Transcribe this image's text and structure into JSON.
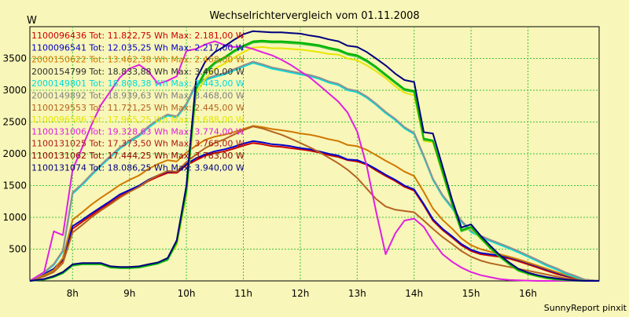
{
  "chart_data": {
    "type": "line",
    "title": "Wechselrichtervergleich vom 01.11.2008",
    "ylabel": "W",
    "footer": "SunnyReport pinxit",
    "ylim": [
      0,
      4000
    ],
    "xlim": [
      7.25,
      17.25
    ],
    "yticks": [
      500,
      1000,
      1500,
      2000,
      2500,
      3000,
      3500
    ],
    "xticks": [
      {
        "x": 8,
        "label": "8h"
      },
      {
        "x": 9,
        "label": "9h"
      },
      {
        "x": 10,
        "label": "10h"
      },
      {
        "x": 11,
        "label": "11h"
      },
      {
        "x": 12,
        "label": "12h"
      },
      {
        "x": 13,
        "label": "13h"
      },
      {
        "x": 14,
        "label": "14h"
      },
      {
        "x": 15,
        "label": "15h"
      },
      {
        "x": 16,
        "label": "16h"
      }
    ],
    "grid": true,
    "background": "#f8f6b8",
    "grid_color": "#3cc43c",
    "x": [
      7.25,
      7.5,
      7.67,
      7.83,
      8.0,
      8.17,
      8.33,
      8.5,
      8.67,
      8.83,
      9.0,
      9.17,
      9.33,
      9.5,
      9.67,
      9.83,
      10.0,
      10.17,
      10.33,
      10.5,
      10.67,
      10.83,
      11.0,
      11.17,
      11.33,
      11.5,
      11.67,
      11.83,
      12.0,
      12.17,
      12.33,
      12.5,
      12.67,
      12.83,
      13.0,
      13.17,
      13.33,
      13.5,
      13.67,
      13.83,
      14.0,
      14.17,
      14.33,
      14.5,
      14.67,
      14.83,
      15.0,
      15.17,
      15.33,
      15.5,
      15.67,
      15.83,
      16.0,
      16.17,
      16.33,
      16.5,
      16.67,
      16.83,
      17.0,
      17.25
    ],
    "series": [
      {
        "name": "1100096436 Tot: 11.822,75 Wh Max: 2.181,00 W",
        "color": "#cc0000",
        "values": [
          0,
          100,
          180,
          320,
          820,
          930,
          1030,
          1140,
          1230,
          1330,
          1410,
          1480,
          1570,
          1640,
          1700,
          1700,
          1820,
          1900,
          1970,
          2010,
          2040,
          2080,
          2130,
          2170,
          2150,
          2120,
          2110,
          2090,
          2070,
          2050,
          2020,
          1980,
          1950,
          1900,
          1880,
          1830,
          1740,
          1650,
          1570,
          1480,
          1420,
          1190,
          950,
          800,
          680,
          560,
          470,
          420,
          400,
          380,
          350,
          310,
          260,
          210,
          160,
          110,
          70,
          40,
          10,
          0
        ]
      },
      {
        "name": "1100096541 Tot: 12.035,25 Wh Max: 2.217,00 W",
        "color": "#0000cc",
        "values": [
          0,
          110,
          190,
          340,
          860,
          960,
          1060,
          1160,
          1260,
          1360,
          1430,
          1500,
          1590,
          1660,
          1720,
          1720,
          1840,
          1930,
          1990,
          2040,
          2070,
          2110,
          2160,
          2200,
          2180,
          2150,
          2140,
          2120,
          2090,
          2070,
          2040,
          2000,
          1970,
          1910,
          1900,
          1840,
          1760,
          1670,
          1590,
          1500,
          1440,
          1210,
          970,
          820,
          700,
          580,
          490,
          440,
          420,
          400,
          370,
          330,
          280,
          230,
          180,
          130,
          80,
          50,
          10,
          0
        ]
      },
      {
        "name": "2000150622 Tot: 13.462,38 Wh Max: 2.468,00 W",
        "color": "#d07800",
        "values": [
          0,
          90,
          170,
          360,
          960,
          1080,
          1200,
          1310,
          1410,
          1510,
          1590,
          1660,
          1760,
          1840,
          1900,
          1880,
          2020,
          2130,
          2220,
          2270,
          2300,
          2340,
          2390,
          2440,
          2420,
          2390,
          2370,
          2350,
          2320,
          2300,
          2270,
          2230,
          2200,
          2140,
          2120,
          2060,
          1980,
          1890,
          1810,
          1720,
          1650,
          1400,
          1140,
          960,
          820,
          670,
          560,
          500,
          460,
          420,
          380,
          340,
          290,
          240,
          190,
          140,
          90,
          50,
          10,
          0
        ]
      },
      {
        "name": "2000154799 Tot: 18.833,88 Wh Max: 3.460,00 W",
        "color": "#606060",
        "values": [
          0,
          130,
          260,
          470,
          1380,
          1520,
          1670,
          1820,
          1960,
          2090,
          2200,
          2290,
          2420,
          2530,
          2610,
          2580,
          2780,
          3100,
          3170,
          3220,
          3260,
          3320,
          3380,
          3440,
          3400,
          3350,
          3320,
          3290,
          3260,
          3230,
          3190,
          3130,
          3090,
          3010,
          2980,
          2890,
          2780,
          2650,
          2540,
          2410,
          2320,
          1960,
          1600,
          1340,
          1150,
          940,
          780,
          700,
          640,
          580,
          520,
          460,
          390,
          320,
          250,
          190,
          120,
          70,
          20,
          0
        ]
      },
      {
        "name": "2000149801 Tot: 18.808,38 Wh Max: 3.443,00 W",
        "color": "#00dcdc",
        "values": [
          0,
          130,
          250,
          460,
          1370,
          1510,
          1660,
          1810,
          1950,
          2080,
          2190,
          2280,
          2410,
          2520,
          2600,
          2570,
          2770,
          3080,
          3160,
          3210,
          3250,
          3310,
          3370,
          3430,
          3390,
          3340,
          3310,
          3280,
          3250,
          3220,
          3180,
          3120,
          3080,
          3000,
          2970,
          2880,
          2770,
          2640,
          2530,
          2400,
          2310,
          1950,
          1590,
          1330,
          1140,
          930,
          770,
          690,
          630,
          570,
          510,
          450,
          380,
          310,
          240,
          180,
          110,
          60,
          20,
          0
        ]
      },
      {
        "name": "2000149892 Tot: 18.939,63 Wh Max: 3.468,00 W",
        "color": "#909090",
        "values": [
          0,
          135,
          265,
          480,
          1390,
          1530,
          1680,
          1830,
          1970,
          2100,
          2210,
          2300,
          2430,
          2540,
          2620,
          2590,
          2790,
          3110,
          3180,
          3230,
          3270,
          3330,
          3390,
          3450,
          3410,
          3360,
          3330,
          3300,
          3270,
          3240,
          3200,
          3140,
          3100,
          3020,
          2990,
          2900,
          2790,
          2660,
          2550,
          2420,
          2330,
          1970,
          1610,
          1350,
          1160,
          950,
          790,
          710,
          650,
          590,
          530,
          470,
          400,
          330,
          260,
          200,
          130,
          80,
          20,
          0
        ]
      },
      {
        "name": "1100129553 Tot: 11.721,25 Wh Max: 2.445,00 W",
        "color": "#b46420",
        "values": [
          0,
          70,
          140,
          280,
          760,
          880,
          1000,
          1110,
          1210,
          1310,
          1400,
          1480,
          1580,
          1660,
          1730,
          1720,
          1870,
          1990,
          2090,
          2170,
          2230,
          2300,
          2370,
          2430,
          2400,
          2350,
          2300,
          2240,
          2170,
          2100,
          2030,
          1940,
          1850,
          1750,
          1620,
          1450,
          1290,
          1170,
          1120,
          1100,
          1080,
          950,
          820,
          690,
          580,
          470,
          380,
          320,
          280,
          250,
          220,
          190,
          160,
          130,
          100,
          70,
          40,
          20,
          5,
          0
        ]
      },
      {
        "name": "1100096586 Tot: 17.965,25 Wh Max: 3.688,00 W",
        "color": "#e6e600",
        "values": [
          0,
          30,
          80,
          140,
          250,
          270,
          270,
          270,
          230,
          220,
          220,
          230,
          260,
          290,
          350,
          560,
          1350,
          2950,
          3180,
          3340,
          3420,
          3510,
          3600,
          3670,
          3680,
          3660,
          3660,
          3650,
          3640,
          3620,
          3600,
          3570,
          3560,
          3500,
          3470,
          3390,
          3300,
          3190,
          3060,
          2960,
          2920,
          2200,
          2180,
          1680,
          1200,
          780,
          830,
          660,
          520,
          380,
          260,
          160,
          110,
          70,
          40,
          20,
          10,
          5,
          0,
          0
        ]
      },
      {
        "name": "1100131006 Tot: 19.328,63 Wh Max: 3.774,00 W",
        "color": "#e020e0",
        "values": [
          0,
          140,
          780,
          720,
          1750,
          2100,
          2450,
          2770,
          2990,
          3200,
          3340,
          3400,
          3300,
          3100,
          3150,
          3220,
          3620,
          3650,
          3720,
          3770,
          3710,
          3680,
          3690,
          3650,
          3600,
          3550,
          3480,
          3400,
          3300,
          3200,
          3080,
          2950,
          2820,
          2650,
          2350,
          1800,
          1100,
          420,
          750,
          950,
          980,
          850,
          620,
          420,
          300,
          210,
          140,
          90,
          60,
          30,
          15,
          10,
          5,
          0,
          0,
          0,
          0,
          0,
          0,
          0
        ]
      },
      {
        "name": "1100131025 Tot: 17.373,50 Wh Max: 3.765,00 W",
        "color": "#30c030",
        "values": [
          0,
          20,
          60,
          120,
          240,
          260,
          260,
          260,
          210,
          200,
          200,
          210,
          240,
          270,
          330,
          600,
          1400,
          3010,
          3270,
          3420,
          3500,
          3600,
          3680,
          3750,
          3760,
          3750,
          3750,
          3740,
          3730,
          3710,
          3690,
          3650,
          3620,
          3560,
          3530,
          3450,
          3350,
          3230,
          3110,
          3000,
          2970,
          2220,
          2200,
          1700,
          1200,
          780,
          840,
          670,
          520,
          380,
          260,
          160,
          110,
          70,
          40,
          20,
          10,
          5,
          0,
          0
        ]
      },
      {
        "name": "1100131062 Tot: 17.444,25 Wh Max: 3.783,00 W",
        "color": "#00b400",
        "values": [
          0,
          25,
          65,
          125,
          250,
          265,
          265,
          265,
          215,
          205,
          205,
          215,
          245,
          275,
          340,
          610,
          1420,
          3040,
          3300,
          3440,
          3520,
          3620,
          3700,
          3770,
          3780,
          3770,
          3770,
          3760,
          3750,
          3730,
          3710,
          3670,
          3640,
          3580,
          3550,
          3470,
          3370,
          3250,
          3130,
          3020,
          2990,
          2240,
          2210,
          1720,
          1210,
          800,
          850,
          680,
          530,
          390,
          270,
          170,
          120,
          80,
          50,
          30,
          15,
          5,
          0,
          0
        ]
      },
      {
        "name": "1100131074 Tot: 18.086,25 Wh Max: 3.940,00 W",
        "color": "#000080",
        "values": [
          0,
          30,
          75,
          140,
          260,
          280,
          280,
          280,
          230,
          220,
          220,
          230,
          260,
          290,
          360,
          640,
          1500,
          3170,
          3450,
          3600,
          3690,
          3790,
          3880,
          3930,
          3920,
          3910,
          3910,
          3900,
          3890,
          3860,
          3840,
          3800,
          3770,
          3700,
          3680,
          3600,
          3500,
          3390,
          3260,
          3160,
          3130,
          2340,
          2320,
          1800,
          1270,
          840,
          890,
          710,
          560,
          410,
          290,
          190,
          130,
          90,
          60,
          40,
          20,
          10,
          0,
          0
        ]
      }
    ],
    "legend_colors": [
      "#cc0000",
      "#0000cc",
      "#d07800",
      "#303030",
      "#00dcdc",
      "#808080",
      "#b46420",
      "#e6e600",
      "#e020e0",
      "#b01818",
      "#900000",
      "#000080"
    ]
  }
}
